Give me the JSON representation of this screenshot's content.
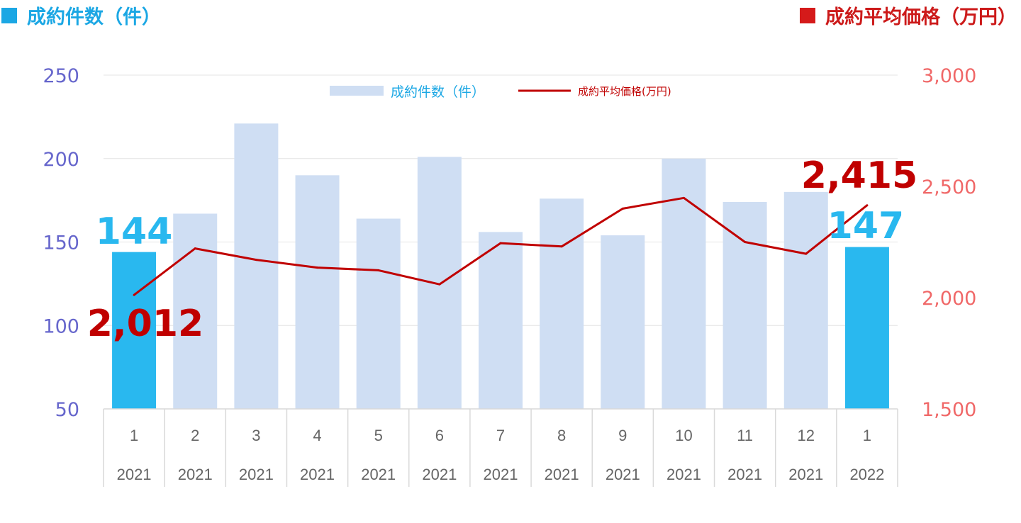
{
  "header": {
    "left_title": "成約件数（件）",
    "right_title": "成約平均価格（万円）",
    "left_color": "#1ba7e4",
    "right_color": "#d51a1a"
  },
  "chart_data": {
    "type": "bar",
    "categories": [
      {
        "month": "1",
        "year": "2021"
      },
      {
        "month": "2",
        "year": "2021"
      },
      {
        "month": "3",
        "year": "2021"
      },
      {
        "month": "4",
        "year": "2021"
      },
      {
        "month": "5",
        "year": "2021"
      },
      {
        "month": "6",
        "year": "2021"
      },
      {
        "month": "7",
        "year": "2021"
      },
      {
        "month": "8",
        "year": "2021"
      },
      {
        "month": "9",
        "year": "2021"
      },
      {
        "month": "10",
        "year": "2021"
      },
      {
        "month": "11",
        "year": "2021"
      },
      {
        "month": "12",
        "year": "2021"
      },
      {
        "month": "1",
        "year": "2022"
      }
    ],
    "series": [
      {
        "name": "成約件数（件）",
        "type": "bar",
        "axis": "left",
        "values": [
          144,
          167,
          221,
          190,
          164,
          201,
          156,
          176,
          154,
          200,
          174,
          180,
          147
        ],
        "color": "#cfdef3",
        "highlight_color": "#29b8ef",
        "highlight_indices": [
          0,
          12
        ]
      },
      {
        "name": "成約平均価格(万円)",
        "type": "line",
        "axis": "right",
        "values": [
          2012,
          2221,
          2170,
          2135,
          2123,
          2060,
          2245,
          2230,
          2400,
          2448,
          2250,
          2197,
          2415
        ],
        "color": "#c00000"
      }
    ],
    "left_axis": {
      "min": 50,
      "max": 250,
      "ticks": [
        "50",
        "100",
        "150",
        "200",
        "250"
      ],
      "color": "#6666cc"
    },
    "right_axis": {
      "min": 1500,
      "max": 3000,
      "ticks": [
        "1,500",
        "2,000",
        "2,500",
        "3,000"
      ],
      "color": "#f06868"
    },
    "annotations": [
      {
        "series": 0,
        "index": 0,
        "text": "144",
        "color": "#29b8ef"
      },
      {
        "series": 0,
        "index": 12,
        "text": "147",
        "color": "#29b8ef"
      },
      {
        "series": 1,
        "index": 0,
        "text": "2,012",
        "color": "#c00000"
      },
      {
        "series": 1,
        "index": 12,
        "text": "2,415",
        "color": "#c00000"
      }
    ],
    "legend": {
      "position": "top-center",
      "bar_label": "成約件数（件）",
      "line_label": "成約平均価格(万円)"
    },
    "grid": true
  }
}
